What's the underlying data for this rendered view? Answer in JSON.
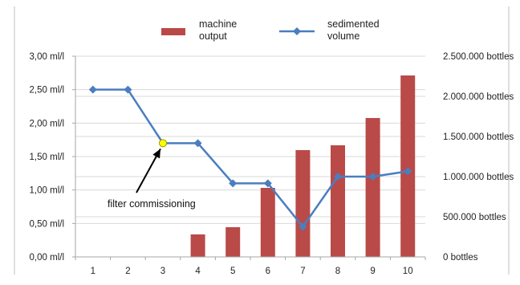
{
  "chart_data": {
    "type": "bar",
    "categories": [
      "1",
      "2",
      "3",
      "4",
      "5",
      "6",
      "7",
      "8",
      "9",
      "10"
    ],
    "series": [
      {
        "name": "machine output",
        "legend_lines": [
          "machine",
          "output"
        ],
        "type": "bar",
        "axis": "right",
        "color": "#b94a48",
        "values": [
          0,
          0,
          0,
          280000,
          370000,
          860000,
          1330000,
          1390000,
          1730000,
          2260000
        ]
      },
      {
        "name": "sedimented volume",
        "legend_lines": [
          "sedimented",
          "volume"
        ],
        "type": "line",
        "axis": "left",
        "color": "#4a7ebf",
        "values": [
          2.5,
          2.5,
          1.7,
          1.7,
          1.1,
          1.1,
          0.45,
          1.2,
          1.2,
          1.28
        ]
      }
    ],
    "y_left": {
      "ylim": [
        0,
        3
      ],
      "ticks": [
        0,
        0.5,
        1,
        1.5,
        2,
        2.5,
        3
      ],
      "tick_labels": [
        "0,00 ml/l",
        "0,50 ml/l",
        "1,00 ml/l",
        "1,50 ml/l",
        "2,00 ml/l",
        "2,50 ml/l",
        "3,00 ml/l"
      ]
    },
    "y_right": {
      "ylim": [
        0,
        2500000
      ],
      "ticks": [
        0,
        500000,
        1000000,
        1500000,
        2000000,
        2500000
      ],
      "tick_labels": [
        "0 bottles",
        "500.000 bottles",
        "1.000.000 bottles",
        "1.500.000 bottles",
        "2.000.000 bottles",
        "2.500.000 bottles"
      ]
    },
    "grid": true,
    "legend_position": "top",
    "annotation": {
      "text": "filter commissioning",
      "category": "3",
      "value": 1.7,
      "marker_color": "#ffff00"
    }
  }
}
